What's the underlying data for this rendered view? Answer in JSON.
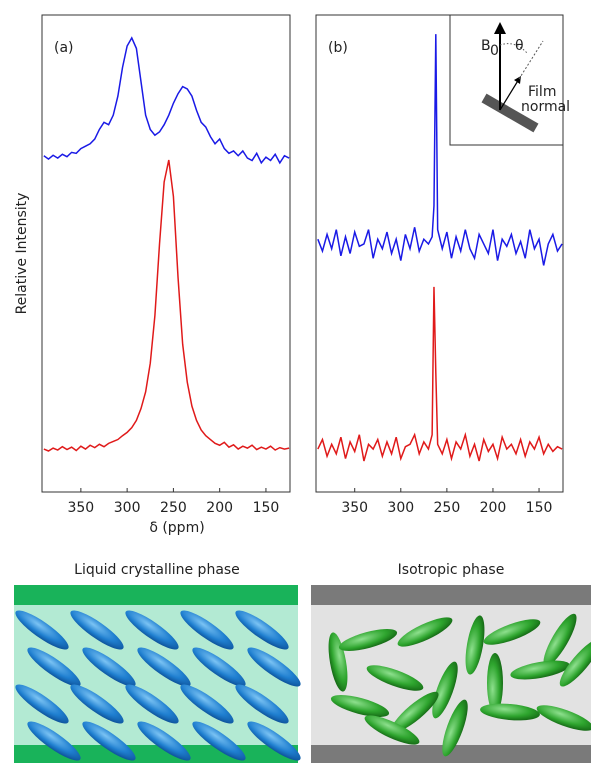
{
  "chart_data": [
    {
      "type": "line",
      "title": "(a)",
      "y_label": "Relative Intensity",
      "x": [
        390,
        385,
        380,
        375,
        370,
        365,
        360,
        355,
        350,
        345,
        340,
        335,
        330,
        325,
        320,
        315,
        310,
        305,
        300,
        295,
        290,
        285,
        280,
        275,
        270,
        265,
        260,
        255,
        250,
        245,
        240,
        235,
        230,
        225,
        220,
        215,
        210,
        205,
        200,
        195,
        190,
        185,
        180,
        175,
        170,
        165,
        160,
        155,
        150,
        145,
        140,
        135,
        130,
        125
      ],
      "xlim": [
        392,
        124
      ],
      "xticks": [
        350,
        300,
        250,
        200,
        150
      ],
      "ylim": [
        0,
        100
      ],
      "series": [
        {
          "color": "#1a1ae6",
          "values": [
            70.5,
            69.8,
            70.6,
            70.0,
            70.8,
            70.3,
            71.2,
            71.0,
            72.0,
            72.5,
            73.0,
            74.0,
            76.0,
            77.5,
            77.0,
            79.0,
            83.0,
            89.0,
            93.5,
            95.2,
            93,
            86,
            79,
            76,
            74.8,
            75.5,
            77,
            79,
            81.5,
            83.5,
            85,
            84.5,
            83,
            80,
            77.5,
            76.5,
            74.5,
            73,
            74,
            72,
            71,
            71.5,
            70.5,
            71.5,
            70,
            69.5,
            71,
            69,
            70.2,
            69.5,
            70.8,
            69,
            70.5,
            70
          ]
        },
        {
          "color": "#e01a1a",
          "values": [
            9.0,
            8.6,
            9.2,
            8.8,
            9.5,
            8.9,
            9.4,
            8.7,
            9.6,
            9.0,
            9.8,
            9.3,
            10.0,
            9.5,
            10.2,
            10.6,
            11.0,
            11.8,
            12.5,
            13.5,
            15,
            17.5,
            21,
            27,
            37,
            52,
            65,
            69.6,
            62,
            45,
            31,
            23,
            18,
            15,
            13,
            11.8,
            11,
            10.2,
            9.8,
            10.4,
            9.4,
            9.9,
            9.0,
            9.6,
            9.2,
            9.8,
            8.9,
            9.4,
            9.0,
            9.6,
            8.8,
            9.3,
            9.0,
            9.2
          ]
        }
      ]
    },
    {
      "type": "line",
      "title": "(b)",
      "x": [
        390,
        385,
        380,
        375,
        370,
        365,
        360,
        355,
        350,
        345,
        340,
        335,
        330,
        325,
        320,
        315,
        310,
        305,
        300,
        295,
        290,
        285,
        280,
        275,
        270,
        266,
        264,
        262,
        260,
        255,
        250,
        245,
        240,
        235,
        230,
        225,
        220,
        215,
        210,
        205,
        200,
        195,
        190,
        185,
        180,
        175,
        170,
        165,
        160,
        155,
        150,
        145,
        140,
        135,
        130,
        125
      ],
      "xlim": [
        392,
        124
      ],
      "xticks": [
        350,
        300,
        250,
        200,
        150
      ],
      "ylim": [
        0,
        100
      ],
      "series": [
        {
          "color": "#1a1ae6",
          "values": [
            53,
            50.5,
            54,
            51,
            55,
            49.5,
            53.5,
            50,
            54.5,
            51.5,
            52,
            55,
            49,
            53,
            51,
            54.5,
            50,
            53,
            48.5,
            54,
            51,
            55.5,
            50.5,
            53,
            52,
            53.5,
            60,
            96,
            55,
            51,
            54.5,
            49,
            53.5,
            50.5,
            55,
            51,
            49,
            54,
            52,
            50,
            55,
            48.5,
            53,
            51.5,
            54,
            50,
            52.5,
            49,
            55,
            51,
            53,
            47.5,
            52,
            54,
            50.5,
            52
          ]
        },
        {
          "color": "#e01a1a",
          "values": [
            9,
            11,
            7.5,
            10,
            8,
            11.5,
            7,
            10.5,
            8.5,
            12,
            6.5,
            10,
            9,
            11,
            7.5,
            10.5,
            8,
            11.5,
            7,
            9.5,
            10,
            12,
            8,
            10.5,
            9,
            12,
            43,
            25,
            10,
            8,
            11,
            7,
            10.5,
            9,
            12,
            7.5,
            10,
            6.5,
            11,
            8.5,
            10,
            7,
            11.5,
            9,
            10,
            8,
            11,
            7.5,
            10.5,
            9,
            11.5,
            8,
            10,
            8.5,
            9.5,
            9
          ]
        }
      ],
      "inset": {
        "field": "B",
        "field_sub": "0",
        "angle": "θ",
        "normal": [
          "Film",
          "normal"
        ]
      }
    }
  ],
  "x_label": "δ (ppm)",
  "phases": [
    {
      "title": "Liquid crystalline phase"
    },
    {
      "title": "Isotropic phase"
    }
  ]
}
